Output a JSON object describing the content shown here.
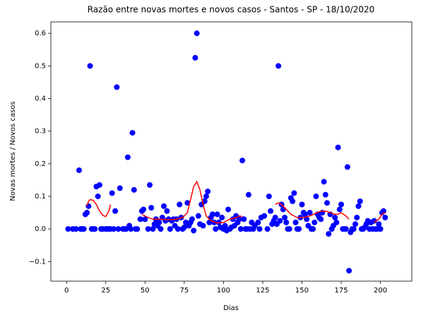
{
  "chart_data": {
    "type": "scatter",
    "title": "Razão entre novas mortes e novos casos - Santos - SP - 18/10/2020",
    "x_label": "Dias",
    "y_label": "Novas mortes / Novos casos",
    "xlim": [
      -10,
      220
    ],
    "ylim": [
      -0.16,
      0.635
    ],
    "xticks": [
      0,
      25,
      50,
      75,
      100,
      125,
      150,
      175,
      200
    ],
    "yticks": [
      {
        "value": -0.1,
        "label": "−0.1"
      },
      {
        "value": 0,
        "label": "0.0"
      },
      {
        "value": 0.1,
        "label": "0.1"
      },
      {
        "value": 0.2,
        "label": "0.2"
      },
      {
        "value": 0.3,
        "label": "0.3"
      },
      {
        "value": 0.4,
        "label": "0.4"
      },
      {
        "value": 0.5,
        "label": "0.5"
      },
      {
        "value": 0.6,
        "label": "0.6"
      }
    ],
    "series": [
      {
        "color": "#0000ff",
        "x": [
          1,
          4,
          6,
          8,
          9,
          10,
          11,
          12,
          13,
          14,
          15,
          16,
          17,
          18,
          19,
          20,
          21,
          22,
          23,
          25,
          26,
          27,
          28,
          29,
          30,
          31,
          32,
          33,
          34,
          36,
          37,
          38,
          39,
          40,
          41,
          42,
          43,
          44,
          45,
          47,
          48,
          49,
          50,
          52,
          53,
          54,
          55,
          56,
          57,
          58,
          59,
          60,
          61,
          62,
          63,
          64,
          65,
          66,
          67,
          68,
          69,
          70,
          71,
          72,
          73,
          74,
          75,
          76,
          77,
          78,
          79,
          80,
          81,
          82,
          83,
          84,
          85,
          86,
          87,
          88,
          89,
          90,
          91,
          92,
          93,
          94,
          95,
          96,
          97,
          98,
          99,
          100,
          101,
          102,
          103,
          104,
          105,
          106,
          107,
          108,
          109,
          110,
          111,
          112,
          113,
          114,
          115,
          116,
          117,
          118,
          119,
          120,
          122,
          123,
          124,
          126,
          128,
          129,
          130,
          131,
          132,
          133,
          134,
          135,
          136,
          137,
          138,
          139,
          140,
          141,
          142,
          143,
          144,
          145,
          146,
          147,
          148,
          149,
          150,
          151,
          152,
          153,
          154,
          155,
          156,
          157,
          158,
          159,
          160,
          161,
          162,
          163,
          164,
          165,
          166,
          167,
          168,
          169,
          170,
          171,
          172,
          173,
          174,
          175,
          176,
          177,
          178,
          179,
          180,
          181,
          182,
          183,
          184,
          185,
          186,
          187,
          188,
          189,
          190,
          191,
          192,
          193,
          194,
          195,
          196,
          197,
          198,
          199,
          200,
          201,
          202,
          203
        ],
        "values": [
          0,
          0,
          0,
          0.18,
          0,
          0,
          0,
          0.045,
          0.05,
          0.07,
          0.5,
          0,
          0,
          0,
          0.13,
          0.1,
          0.135,
          0,
          0,
          0,
          0,
          0,
          0,
          0.11,
          0,
          0.055,
          0.435,
          0,
          0.125,
          0,
          0,
          0,
          0.22,
          0.01,
          0,
          0.295,
          0.12,
          0,
          0,
          0.03,
          0.055,
          0.06,
          0.03,
          0,
          0.135,
          0.065,
          0,
          0.015,
          0.03,
          0.01,
          0.02,
          0,
          0.035,
          0.07,
          0.025,
          0.055,
          0.03,
          0,
          0.025,
          0.03,
          0.01,
          0.03,
          0,
          0.075,
          0.035,
          0,
          0.005,
          0.02,
          0.08,
          0.01,
          0.02,
          0.03,
          -0.005,
          0.525,
          0.6,
          0.04,
          0.015,
          0.075,
          0.01,
          0.085,
          0.1,
          0.115,
          0.02,
          0.035,
          0.045,
          0.02,
          0,
          0.045,
          0.02,
          0.005,
          0.035,
          0,
          0.01,
          -0.005,
          0.06,
          0,
          0.005,
          0.03,
          0.01,
          0.04,
          0.02,
          0.03,
          0,
          0.21,
          0.03,
          0,
          0,
          0.105,
          0,
          0.02,
          0,
          0.01,
          0.02,
          0,
          0.035,
          0.04,
          0,
          0.1,
          0.055,
          0.015,
          0.025,
          0.035,
          0.015,
          0.5,
          0.025,
          0.075,
          0.06,
          0.035,
          0.02,
          0,
          0,
          0.095,
          0.085,
          0.11,
          0.02,
          0,
          0,
          0.035,
          0.075,
          0.05,
          0.045,
          0.03,
          0.01,
          0.05,
          0,
          0,
          0.02,
          0.1,
          0.045,
          0.035,
          0.03,
          0.05,
          0.145,
          0.105,
          0.08,
          -0.015,
          0.045,
          0,
          0.01,
          0.035,
          0.02,
          0.25,
          0.06,
          0.075,
          0,
          0,
          0,
          0.19,
          -0.128,
          -0.01,
          0,
          0,
          0.015,
          0.035,
          0.07,
          0.085,
          0,
          0,
          0.005,
          0.015,
          0.025,
          0,
          0.02,
          0,
          0.025,
          0,
          0,
          0.015,
          0,
          0.05,
          0.055,
          0.035
        ]
      },
      {
        "type": "line",
        "color": "#ff0000",
        "x": [
          13,
          14,
          15,
          17,
          19,
          21,
          23,
          25,
          27,
          28,
          38,
          48,
          50,
          52,
          55,
          60,
          65,
          70,
          74,
          77,
          79,
          81,
          83,
          85,
          87,
          89,
          92,
          96,
          100,
          104,
          106,
          108,
          110,
          112,
          122,
          133,
          135,
          137,
          140,
          143,
          147,
          151,
          155,
          159,
          162,
          165,
          168,
          171,
          173,
          175,
          178,
          180,
          188,
          196,
          199,
          201,
          203
        ],
        "values": [
          0.07,
          0.085,
          0.09,
          0.088,
          0.075,
          0.055,
          0.042,
          0.038,
          0.055,
          0.075,
          null,
          0.045,
          0.04,
          0.035,
          0.03,
          0.03,
          0.028,
          0.03,
          0.035,
          0.05,
          0.09,
          0.13,
          0.145,
          0.12,
          0.075,
          0.04,
          0.025,
          0.018,
          0.02,
          0.03,
          0.032,
          0.035,
          0.04,
          0.038,
          null,
          0.075,
          0.08,
          0.075,
          0.06,
          0.045,
          0.035,
          0.035,
          0.04,
          0.048,
          0.055,
          0.055,
          0.05,
          0.045,
          0.045,
          0.05,
          0.04,
          0.03,
          null,
          0.02,
          0.03,
          0.045,
          0.05
        ]
      }
    ]
  }
}
